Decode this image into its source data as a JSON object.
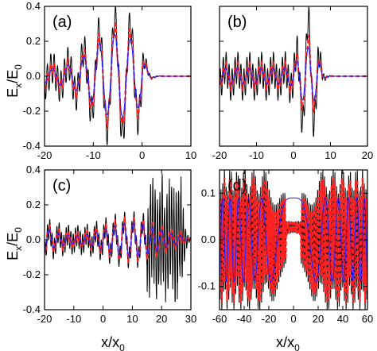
{
  "figure": {
    "ylabel_main": "E",
    "ylabel_sub1": "x",
    "ylabel_mid": "/E",
    "ylabel_sub2": "0",
    "xlabel_main": "x/x",
    "xlabel_sub": "0"
  },
  "colors": {
    "black": "#000000",
    "red": "#ff2020",
    "blue": "#2020ff",
    "baseline": "#1a1aff"
  },
  "chart_data": [
    {
      "type": "line",
      "panel_label": "(a)",
      "xlim": [
        -20,
        10
      ],
      "ylim": [
        -0.4,
        0.4
      ],
      "xticks": [
        -20,
        -10,
        0,
        10
      ],
      "yticks": [
        -0.4,
        -0.2,
        0.0,
        0.2,
        0.4
      ],
      "ytick_labels": [
        "-0.4",
        "-0.2",
        "0.0",
        "0.2",
        "0.4"
      ],
      "series": [
        {
          "color": "black",
          "style": "solid",
          "envelope_peak": 0.39,
          "envelope_center": -5,
          "envelope_width": 7,
          "fast_period": 0.7,
          "fast_amp": 0.09
        },
        {
          "color": "red",
          "style": "dashed",
          "envelope_peak": 0.33,
          "envelope_center": -5,
          "envelope_width": 7,
          "fast_period": 0.7,
          "fast_amp": 0.03
        },
        {
          "color": "blue",
          "style": "solid",
          "envelope_peak": 0.32,
          "envelope_center": -5,
          "envelope_width": 7,
          "fast_period": 0,
          "fast_amp": 0
        }
      ],
      "decay_after": 0
    },
    {
      "type": "line",
      "panel_label": "(b)",
      "xlim": [
        -20,
        20
      ],
      "ylim": [
        -0.4,
        0.4
      ],
      "xticks": [
        -20,
        -10,
        0,
        10,
        20
      ],
      "yticks": [
        -0.4,
        -0.2,
        0.0,
        0.2,
        0.4
      ],
      "ytick_labels": [
        "",
        "",
        "",
        "",
        ""
      ],
      "series": [
        {
          "color": "black",
          "style": "solid",
          "envelope_peak": 0.39,
          "envelope_center": 4,
          "envelope_width": 8,
          "fast_period": 0.8,
          "fast_amp": 0.09
        },
        {
          "color": "red",
          "style": "dashed",
          "envelope_peak": 0.25,
          "envelope_center": 4,
          "envelope_width": 8,
          "fast_period": 0.8,
          "fast_amp": 0.03
        },
        {
          "color": "blue",
          "style": "solid",
          "envelope_peak": 0.22,
          "envelope_center": 4,
          "envelope_width": 8,
          "fast_period": 0,
          "fast_amp": 0
        }
      ],
      "decay_after": 7
    },
    {
      "type": "line",
      "panel_label": "(c)",
      "xlim": [
        -20,
        30
      ],
      "ylim": [
        -0.4,
        0.4
      ],
      "xticks": [
        -20,
        -10,
        0,
        10,
        20,
        30
      ],
      "yticks": [
        -0.4,
        -0.2,
        0.0,
        0.2,
        0.4
      ],
      "ytick_labels": [
        "-0.4",
        "-0.2",
        "0.0",
        "0.2",
        "0.4"
      ],
      "series": [
        {
          "color": "black",
          "style": "solid",
          "envelope_peak": 0.39,
          "envelope_center": 24,
          "envelope_width": 3,
          "fast_period": 0.8,
          "fast_amp": 0.06
        },
        {
          "color": "red",
          "style": "dashed",
          "envelope_peak": 0.15,
          "envelope_center": 24,
          "envelope_width": 3,
          "fast_period": 0.8,
          "fast_amp": 0.02
        },
        {
          "color": "blue",
          "style": "solid",
          "envelope_peak": 0.15,
          "envelope_center": 24,
          "envelope_width": 3,
          "fast_period": 0,
          "fast_amp": 0
        }
      ],
      "decay_after": 27
    },
    {
      "type": "line",
      "panel_label": "(d)",
      "xlim": [
        -60,
        60
      ],
      "ylim": [
        -0.15,
        0.15
      ],
      "xticks": [
        -60,
        -40,
        -20,
        0,
        20,
        40,
        60
      ],
      "yticks": [
        -0.1,
        0.0,
        0.1
      ],
      "ytick_labels": [
        "-0.1",
        "0.0",
        "0.1"
      ],
      "series": [
        {
          "color": "black",
          "style": "solid",
          "envelope_peak": 0.13,
          "envelope_center": 0,
          "envelope_width": 0,
          "fast_period": 1.4,
          "fast_amp": 0.13
        },
        {
          "color": "red",
          "style": "dashed",
          "envelope_peak": 0.11,
          "envelope_center": 0,
          "envelope_width": 0,
          "fast_period": 1.4,
          "fast_amp": 0.11
        },
        {
          "color": "blue",
          "style": "solid",
          "envelope_peak": 0.09,
          "envelope_center": 0,
          "envelope_width": 0,
          "fast_period": 0,
          "fast_amp": 0
        }
      ],
      "decay_after": 999
    }
  ]
}
